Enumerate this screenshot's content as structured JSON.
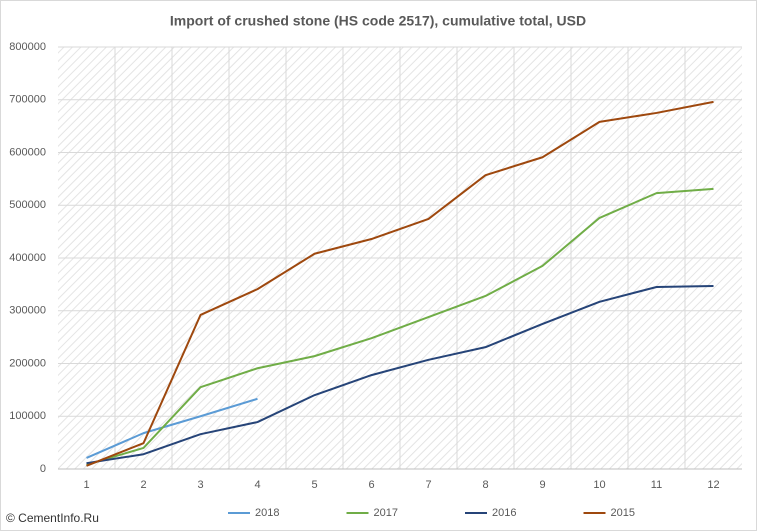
{
  "chart_data": {
    "type": "line",
    "title": "Import of crushed stone (HS code 2517), cumulative total, USD",
    "source": "© CementInfo.Ru",
    "categories": [
      "1",
      "2",
      "3",
      "4",
      "5",
      "6",
      "7",
      "8",
      "9",
      "10",
      "11",
      "12"
    ],
    "ylim": [
      0,
      800000
    ],
    "yticks": [
      0,
      100000,
      200000,
      300000,
      400000,
      500000,
      600000,
      700000,
      800000
    ],
    "grid": true,
    "legend": "bottom",
    "series": [
      {
        "name": "2018",
        "color": "#5b9bd5",
        "values": [
          21000,
          68000,
          100000,
          133000,
          null,
          null,
          null,
          null,
          null,
          null,
          null,
          null
        ]
      },
      {
        "name": "2017",
        "color": "#70ad47",
        "values": [
          8000,
          40000,
          155000,
          191000,
          214000,
          248000,
          288000,
          328000,
          385000,
          476000,
          523000,
          531000
        ]
      },
      {
        "name": "2016",
        "color": "#264478",
        "values": [
          11000,
          28000,
          66000,
          89000,
          140000,
          178000,
          207000,
          231000,
          275000,
          317000,
          345000,
          347000
        ]
      },
      {
        "name": "2015",
        "color": "#9e480e",
        "values": [
          6000,
          49000,
          292000,
          341000,
          408000,
          436000,
          474000,
          557000,
          591000,
          658000,
          675000,
          696000
        ]
      }
    ]
  }
}
